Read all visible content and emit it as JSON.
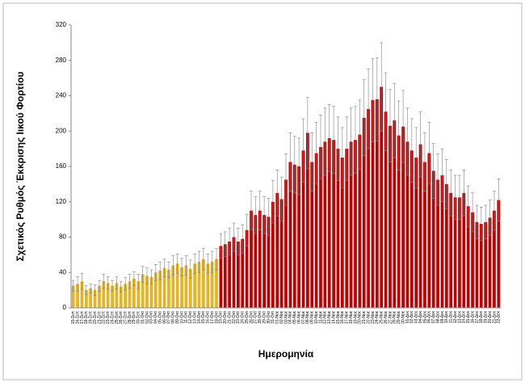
{
  "chart_data": {
    "type": "bar",
    "ylabel": "Σχετικός Ρυθμός Έκκρισης Ιικού Φορτίου",
    "xlabel": "Ημερομηνία",
    "categories": [
      "15-Σεπ",
      "16-Σεπ",
      "17-Σεπ",
      "18-Σεπ",
      "19-Σεπ",
      "20-Σεπ",
      "21-Σεπ",
      "22-Σεπ",
      "23-Σεπ",
      "24-Σεπ",
      "25-Σεπ",
      "26-Σεπ",
      "27-Σεπ",
      "28-Σεπ",
      "29-Σεπ",
      "30-Σεπ",
      "01-Οκτ",
      "02-Οκτ",
      "03-Οκτ",
      "04-Οκτ",
      "05-Οκτ",
      "06-Οκτ",
      "07-Οκτ",
      "08-Οκτ",
      "09-Οκτ",
      "10-Οκτ",
      "11-Οκτ",
      "12-Οκτ",
      "13-Οκτ",
      "14-Οκτ",
      "15-Οκτ",
      "16-Οκτ",
      "17-Οκτ",
      "18-Οκτ",
      "19-Οκτ",
      "20-Οκτ",
      "21-Οκτ",
      "22-Οκτ",
      "23-Οκτ",
      "24-Οκτ",
      "25-Οκτ",
      "26-Οκτ",
      "27-Οκτ",
      "28-Οκτ",
      "29-Οκτ",
      "30-Οκτ",
      "31-Οκτ",
      "01-Νοε",
      "02-Νοε",
      "03-Νοε",
      "04-Νοε",
      "05-Νοε",
      "06-Νοε",
      "07-Νοε",
      "08-Νοε",
      "09-Νοε",
      "10-Νοε",
      "11-Νοε",
      "12-Νοε",
      "13-Νοε",
      "14-Νοε",
      "15-Νοε",
      "16-Νοε",
      "17-Νοε",
      "18-Νοε",
      "19-Νοε",
      "20-Νοε",
      "21-Νοε",
      "22-Νοε",
      "23-Νοε",
      "24-Νοε",
      "25-Νοε",
      "26-Νοε",
      "27-Νοε",
      "28-Νοε",
      "29-Νοε",
      "30-Νοε",
      "01-Δεκ",
      "02-Δεκ",
      "03-Δεκ",
      "04-Δεκ",
      "05-Δεκ",
      "06-Δεκ",
      "07-Δεκ",
      "08-Δεκ",
      "09-Δεκ",
      "10-Δεκ",
      "11-Δεκ",
      "12-Δεκ",
      "13-Δεκ",
      "14-Δεκ",
      "15-Δεκ",
      "16-Δεκ",
      "17-Δεκ",
      "18-Δεκ",
      "19-Δεκ",
      "20-Δεκ",
      "21-Δεκ",
      "22-Δεκ"
    ],
    "values": [
      25,
      27,
      30,
      20,
      22,
      20,
      25,
      30,
      28,
      25,
      28,
      24,
      27,
      30,
      33,
      30,
      38,
      36,
      35,
      40,
      42,
      45,
      43,
      48,
      50,
      46,
      48,
      44,
      50,
      52,
      55,
      50,
      52,
      55,
      70,
      72,
      75,
      80,
      75,
      78,
      88,
      110,
      105,
      110,
      105,
      103,
      120,
      130,
      123,
      145,
      165,
      162,
      160,
      178,
      198,
      165,
      175,
      182,
      188,
      192,
      190,
      180,
      170,
      180,
      188,
      190,
      196,
      215,
      225,
      235,
      236,
      250,
      222,
      206,
      212,
      195,
      205,
      188,
      178,
      170,
      185,
      165,
      175,
      155,
      145,
      150,
      140,
      130,
      125,
      125,
      130,
      115,
      108,
      97,
      95,
      97,
      102,
      110,
      122
    ],
    "errors": [
      6,
      8,
      9,
      5,
      5,
      6,
      6,
      8,
      7,
      6,
      7,
      6,
      7,
      8,
      8,
      8,
      9,
      9,
      8,
      9,
      10,
      10,
      9,
      11,
      11,
      10,
      11,
      10,
      11,
      12,
      12,
      11,
      12,
      12,
      14,
      14,
      15,
      16,
      15,
      16,
      18,
      22,
      21,
      22,
      21,
      21,
      24,
      26,
      25,
      29,
      33,
      32,
      32,
      36,
      40,
      33,
      35,
      36,
      38,
      38,
      38,
      36,
      34,
      36,
      38,
      38,
      39,
      43,
      45,
      47,
      47,
      50,
      44,
      41,
      42,
      39,
      41,
      38,
      36,
      34,
      37,
      33,
      35,
      31,
      29,
      30,
      28,
      26,
      25,
      25,
      26,
      23,
      22,
      19,
      19,
      19,
      20,
      22,
      24
    ],
    "colors": [
      "#e6b422",
      "#e6b422",
      "#e6b422",
      "#e6b422",
      "#e6b422",
      "#e6b422",
      "#e6b422",
      "#e6b422",
      "#e6b422",
      "#e6b422",
      "#e6b422",
      "#e6b422",
      "#e6b422",
      "#e6b422",
      "#e6b422",
      "#e6b422",
      "#e6b422",
      "#e6b422",
      "#e6b422",
      "#e6b422",
      "#e6b422",
      "#e6b422",
      "#e6b422",
      "#e6b422",
      "#e6b422",
      "#e6b422",
      "#e6b422",
      "#e6b422",
      "#e6b422",
      "#e6b422",
      "#e6b422",
      "#e6b422",
      "#e6b422",
      "#e6b422",
      "#c00000",
      "#c00000",
      "#c00000",
      "#c00000",
      "#c00000",
      "#c00000",
      "#c00000",
      "#c00000",
      "#c00000",
      "#c00000",
      "#c00000",
      "#c00000",
      "#c00000",
      "#c00000",
      "#c00000",
      "#c00000",
      "#c00000",
      "#c00000",
      "#c00000",
      "#c00000",
      "#c00000",
      "#c00000",
      "#c00000",
      "#c00000",
      "#c00000",
      "#c00000",
      "#c00000",
      "#c00000",
      "#c00000",
      "#c00000",
      "#c00000",
      "#c00000",
      "#c00000",
      "#c00000",
      "#c00000",
      "#c00000",
      "#c00000",
      "#c00000",
      "#c00000",
      "#c00000",
      "#c00000",
      "#c00000",
      "#c00000",
      "#c00000",
      "#c00000",
      "#c00000",
      "#c00000",
      "#c00000",
      "#c00000",
      "#c00000",
      "#c00000",
      "#c00000",
      "#c00000",
      "#c00000",
      "#c00000",
      "#c00000",
      "#c00000",
      "#c00000",
      "#c00000",
      "#c00000",
      "#c00000",
      "#c00000",
      "#c00000",
      "#c00000",
      "#c00000"
    ],
    "error_color": "#808080",
    "ylim": [
      0,
      320
    ],
    "yticks": [
      0,
      40,
      80,
      120,
      160,
      200,
      240,
      280,
      320
    ],
    "grid": false
  }
}
